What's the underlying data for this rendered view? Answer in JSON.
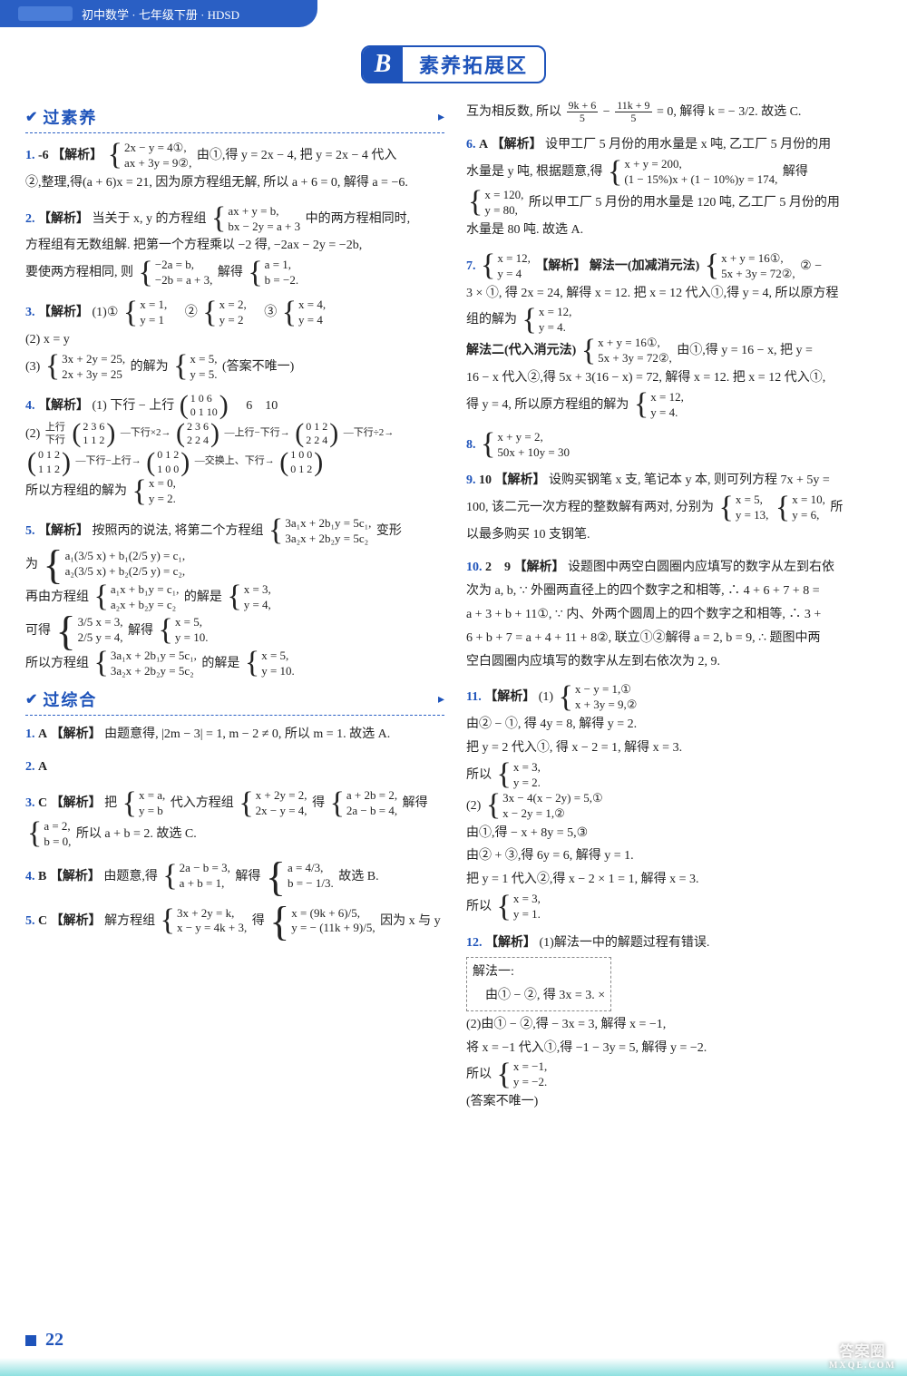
{
  "header": {
    "bannerText": "初中数学 · 七年级下册 · HDSD",
    "badgeLetter": "B",
    "badgeText": "素养拓展区"
  },
  "sectionHeaders": {
    "suoyang": "过素养",
    "zonghe": "过综合"
  },
  "footer": {
    "pageNum": "22",
    "watermark1": "答案圈",
    "watermark2": "MXQE.COM"
  },
  "left": {
    "q1": {
      "num": "1.",
      "ans": "-6",
      "tag": "【解析】",
      "sys1a": "2x − y = 4①,",
      "sys1b": "ax + 3y = 9②,",
      "text1": "由①,得 y = 2x − 4, 把 y = 2x − 4 代入",
      "text2": "②,整理,得(a + 6)x = 21, 因为原方程组无解, 所以 a + 6 = 0, 解得 a = −6."
    },
    "q2": {
      "num": "2.",
      "tag": "【解析】",
      "text1": "当关于 x, y 的方程组",
      "sys1a": "ax + y = b,",
      "sys1b": "bx − 2y = a + 3",
      "text2": "中的两方程相同时,",
      "text3": "方程组有无数组解. 把第一个方程乘以 −2 得, −2ax − 2y = −2b,",
      "text4": "要使两方程相同, 则",
      "sys2a": "−2a = b,",
      "sys2b": "−2b = a + 3,",
      "sys3a": "a = 1,",
      "sys3b": "b = −2.",
      "text5": "解得"
    },
    "q3": {
      "num": "3.",
      "tag": "【解析】",
      "p1": "(1)①",
      "s1a": "x = 1,",
      "s1b": "y = 1",
      "p2": "②",
      "s2a": "x = 2,",
      "s2b": "y = 2",
      "p3": "③",
      "s3a": "x = 4,",
      "s3b": "y = 4",
      "p4": "(2) x = y",
      "p5": "(3)",
      "s4a": "3x + 2y = 25,",
      "s4b": "2x + 3y = 25",
      "p6": "的解为",
      "s5a": "x = 5,",
      "s5b": "y = 5.",
      "p7": "(答案不唯一)"
    },
    "q4": {
      "num": "4.",
      "tag": "【解析】",
      "p1": "(1) 下行 − 上行",
      "m1r1": "1 0 6",
      "m1r2": "0 1 10",
      "p1b": "6　10",
      "p2": "(2)",
      "r2a": "上行",
      "r2b": "下行",
      "m2r1": "2 3 6",
      "m2r2": "1 1 2",
      "arr1": "下行×2",
      "m3r1": "2 3 6",
      "m3r2": "2 2 4",
      "arr2": "上行−下行",
      "m4r1": "0 1 2",
      "m4r2": "2 2 4",
      "arr3": "下行÷2",
      "m5r1": "0 1 2",
      "m5r2": "1 1 2",
      "arr4": "下行−上行",
      "m6r1": "0 1 2",
      "m6r2": "1 0 0",
      "arr5": "交换上、下行",
      "m7r1": "1 0 0",
      "m7r2": "0 1 2",
      "p3": "所以方程组的解为",
      "s1a": "x = 0,",
      "s1b": "y = 2."
    },
    "q5": {
      "num": "5.",
      "tag": "【解析】",
      "text1": "按照丙的说法, 将第二个方程组",
      "sys1a": "3a₁x + 2b₁y = 5c₁,",
      "sys1b": "3a₂x + 2b₂y = 5c₂",
      "text2": "变形",
      "text3": "为",
      "sys2a": "a₁(3/5 x) + b₁(2/5 y) = c₁,",
      "sys2b": "a₂(3/5 x) + b₂(2/5 y) = c₂,",
      "text4": "再由方程组",
      "sys3a": "a₁x + b₁y = c₁,",
      "sys3b": "a₂x + b₂y = c₂",
      "text5": "的解是",
      "sys4a": "x = 3,",
      "sys4b": "y = 4,",
      "text6": "可得",
      "sys5a": "3/5 x = 3,",
      "sys5b": "2/5 y = 4,",
      "text7": "解得",
      "sys6a": "x = 5,",
      "sys6b": "y = 10.",
      "text8": "所以方程组",
      "sys7a": "3a₁x + 2b₁y = 5c₁,",
      "sys7b": "3a₂x + 2b₂y = 5c₂",
      "text9": "的解是",
      "sys8a": "x = 5,",
      "sys8b": "y = 10."
    },
    "z1": {
      "num": "1.",
      "ans": "A",
      "tag": "【解析】",
      "text": "由题意得, |2m − 3| = 1, m − 2 ≠ 0, 所以 m = 1. 故选 A."
    },
    "z2": {
      "num": "2.",
      "ans": "A"
    },
    "z3": {
      "num": "3.",
      "ans": "C",
      "tag": "【解析】",
      "t1": "把",
      "s1a": "x = a,",
      "s1b": "y = b",
      "t2": "代入方程组",
      "s2a": "x + 2y = 2,",
      "s2b": "2x − y = 4,",
      "t3": "得",
      "s3a": "a + 2b = 2,",
      "s3b": "2a − b = 4,",
      "t4": "解得",
      "s4a": "a = 2,",
      "s4b": "b = 0,",
      "t5": "所以 a + b = 2. 故选 C."
    },
    "z4": {
      "num": "4.",
      "ans": "B",
      "tag": "【解析】",
      "t1": "由题意,得",
      "s1a": "2a − b = 3,",
      "s1b": "a + b = 1,",
      "t2": "解得",
      "s2a": "a = 4/3,",
      "s2b": "b = − 1/3.",
      "t3": "故选 B."
    },
    "z5": {
      "num": "5.",
      "ans": "C",
      "tag": "【解析】",
      "t1": "解方程组",
      "s1a": "3x + 2y = k,",
      "s1b": "x − y = 4k + 3,",
      "t2": "得",
      "s2a": "x = (9k + 6)/5,",
      "s2b": "y = − (11k + 9)/5,",
      "t3": "因为 x 与 y"
    }
  },
  "right": {
    "cont5": {
      "t1": "互为相反数, 所以",
      "f1t": "9k + 6",
      "f1b": "5",
      "t2": "−",
      "f2t": "11k + 9",
      "f2b": "5",
      "t3": "= 0, 解得 k = − 3/2. 故选 C."
    },
    "q6": {
      "num": "6.",
      "ans": "A",
      "tag": "【解析】",
      "t1": "设甲工厂 5 月份的用水量是 x 吨, 乙工厂 5 月份的用",
      "t2": "水量是 y 吨, 根据题意,得",
      "s1a": "x + y = 200,",
      "s1b": "(1 − 15%)x + (1 − 10%)y = 174,",
      "t3": "解得",
      "s2a": "x = 120,",
      "s2b": "y = 80,",
      "t4": "所以甲工厂 5 月份的用水量是 120 吨, 乙工厂 5 月份的用",
      "t5": "水量是 80 吨. 故选 A."
    },
    "q7": {
      "num": "7.",
      "s0a": "x = 12,",
      "s0b": "y = 4",
      "tag": "【解析】",
      "m1": "解法一(加减消元法)",
      "s1a": "x + y = 16①,",
      "s1b": "5x + 3y = 72②,",
      "t1": "② −",
      "t2": "3 × ①, 得 2x = 24, 解得 x = 12. 把 x = 12 代入①,得 y = 4, 所以原方程",
      "t3": "组的解为",
      "s2a": "x = 12,",
      "s2b": "y = 4.",
      "m2": "解法二(代入消元法)",
      "s3a": "x + y = 16①,",
      "s3b": "5x + 3y = 72②,",
      "t4": "由①,得 y = 16 − x, 把 y =",
      "t5": "16 − x 代入②,得 5x + 3(16 − x) = 72, 解得 x = 12. 把 x = 12 代入①,",
      "t6": "得 y = 4, 所以原方程组的解为",
      "s4a": "x = 12,",
      "s4b": "y = 4."
    },
    "q8": {
      "num": "8.",
      "s1a": "x + y = 2,",
      "s1b": "50x + 10y = 30"
    },
    "q9": {
      "num": "9.",
      "ans": "10",
      "tag": "【解析】",
      "t1": "设购买钢笔 x 支, 笔记本 y 本, 则可列方程 7x + 5y =",
      "t2": "100, 该二元一次方程的整数解有两对, 分别为",
      "s1a": "x = 5,",
      "s1b": "y = 13,",
      "s2a": "x = 10,",
      "s2b": "y = 6,",
      "t3": "所",
      "t4": "以最多购买 10 支钢笔."
    },
    "q10": {
      "num": "10.",
      "ans": "2　9",
      "tag": "【解析】",
      "t1": "设题图中两空白圆圈内应填写的数字从左到右依",
      "t2": "次为 a, b, ∵ 外圈两直径上的四个数字之和相等, ∴ 4 + 6 + 7 + 8 =",
      "t3": "a + 3 + b + 11①, ∵ 内、外两个圆周上的四个数字之和相等, ∴ 3 +",
      "t4": "6 + b + 7 = a + 4 + 11 + 8②, 联立①②解得 a = 2, b = 9, ∴ 题图中两",
      "t5": "空白圆圈内应填写的数字从左到右依次为 2, 9."
    },
    "q11": {
      "num": "11.",
      "tag": "【解析】",
      "p1": "(1)",
      "s1a": "x − y = 1,①",
      "s1b": "x + 3y = 9,②",
      "t1": "由② − ①, 得 4y = 8, 解得 y = 2.",
      "t2": "把 y = 2 代入①, 得 x − 2 = 1, 解得 x = 3.",
      "t3": "所以",
      "s2a": "x = 3,",
      "s2b": "y = 2.",
      "p2": "(2)",
      "s3a": "3x − 4(x − 2y) = 5,①",
      "s3b": "x − 2y = 1,②",
      "t4": "由①,得 − x + 8y = 5,③",
      "t5": "由② + ③,得 6y = 6, 解得 y = 1.",
      "t6": "把 y = 1 代入②,得 x − 2 × 1 = 1, 解得 x = 3.",
      "t7": "所以",
      "s4a": "x = 3,",
      "s4b": "y = 1."
    },
    "q12": {
      "num": "12.",
      "tag": "【解析】",
      "t1": "(1)解法一中的解题过程有错误.",
      "box1": "解法一:",
      "box2": "由① − ②, 得 3x = 3.  ×",
      "t2": "(2)由① − ②,得 − 3x = 3, 解得 x = −1,",
      "t3": "将 x = −1 代入①,得 −1 − 3y = 5, 解得 y = −2.",
      "t4": "所以",
      "s1a": "x = −1,",
      "s1b": "y = −2.",
      "t5": "(答案不唯一)"
    }
  }
}
